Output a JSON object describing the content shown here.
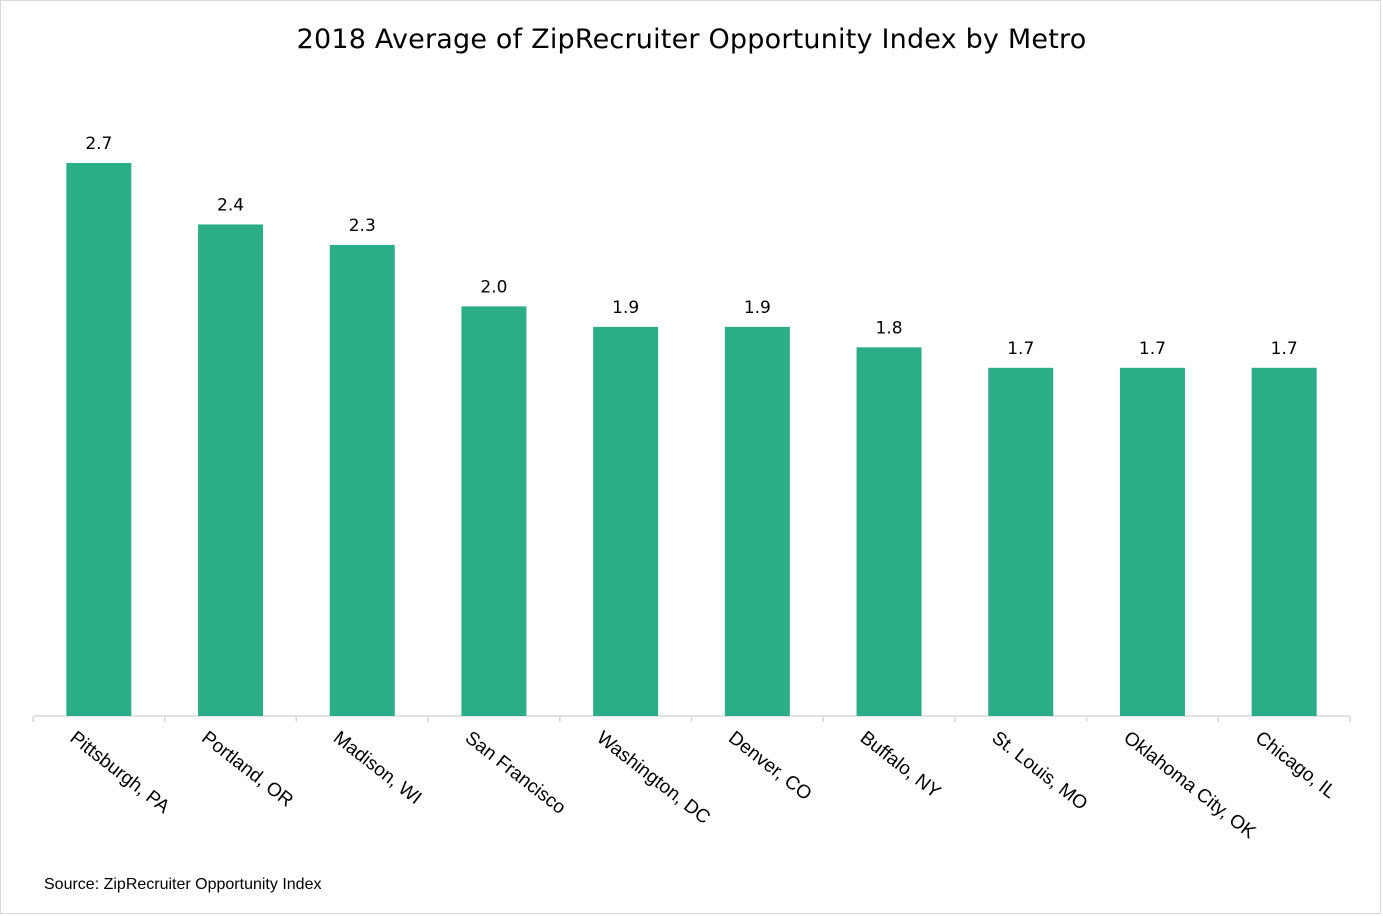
{
  "chart_data": {
    "type": "bar",
    "title": "2018 Average of ZipRecruiter Opportunity Index by Metro",
    "categories": [
      "Pittsburgh, PA",
      "Portland, OR",
      "Madison, WI",
      "San Francisco",
      "Washington, DC",
      "Denver, CO",
      "Buffalo, NY",
      "St. Louis, MO",
      "Oklahoma City, OK",
      "Chicago, IL"
    ],
    "values": [
      2.7,
      2.4,
      2.3,
      2.0,
      1.9,
      1.9,
      1.8,
      1.7,
      1.7,
      1.7
    ],
    "value_labels": [
      "2.7",
      "2.4",
      "2.3",
      "2.0",
      "1.9",
      "1.9",
      "1.8",
      "1.7",
      "1.7",
      "1.7"
    ],
    "xlabel": "",
    "ylabel": "",
    "ylim": [
      0,
      2.7
    ],
    "grid": false,
    "legend": "none",
    "bar_color": "#2BAE88",
    "axis_color": "#d9d9d9"
  },
  "source_note": "Source: ZipRecruiter Opportunity Index"
}
